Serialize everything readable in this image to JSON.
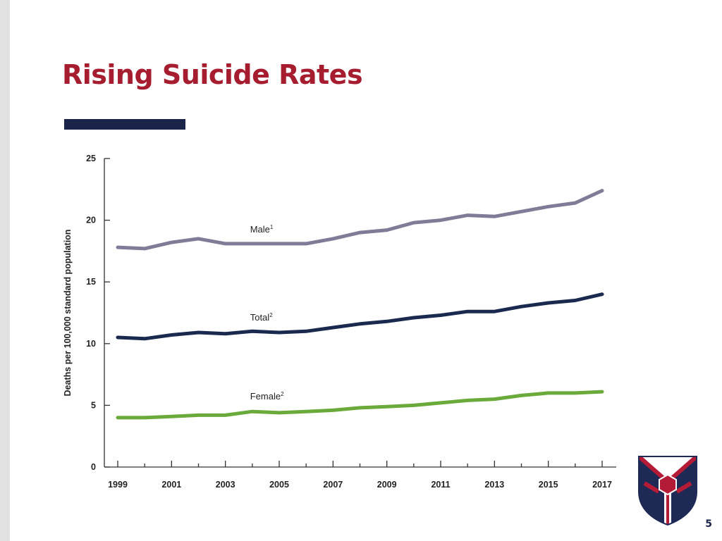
{
  "slide": {
    "title": "Rising Suicide Rates",
    "page_number": "5"
  },
  "colors": {
    "title": "#a51d2e",
    "rule": "#1a2448",
    "male": "#807b96",
    "total": "#1a2a4f",
    "female": "#6aaa3a",
    "crest_navy": "#1e2a55",
    "crest_red": "#b31b36"
  },
  "chart_data": {
    "type": "line",
    "title": "",
    "xlabel": "",
    "ylabel": "Deaths per 100,000 standard population",
    "ylim": [
      0,
      25
    ],
    "yticks": [
      "0",
      "5",
      "10",
      "15",
      "20",
      "25"
    ],
    "xticks": [
      "1999",
      "2001",
      "2003",
      "2005",
      "2007",
      "2009",
      "2011",
      "2013",
      "2015",
      "2017"
    ],
    "grid": false,
    "x": [
      1999,
      2000,
      2001,
      2002,
      2003,
      2004,
      2005,
      2006,
      2007,
      2008,
      2009,
      2010,
      2011,
      2012,
      2013,
      2014,
      2015,
      2016,
      2017
    ],
    "series": [
      {
        "name": "Male",
        "sup": "1",
        "color": "#807b96",
        "values": [
          17.8,
          17.7,
          18.2,
          18.5,
          18.1,
          18.1,
          18.1,
          18.1,
          18.5,
          19.0,
          19.2,
          19.8,
          20.0,
          20.4,
          20.3,
          20.7,
          21.1,
          21.4,
          22.4
        ]
      },
      {
        "name": "Total",
        "sup": "2",
        "color": "#1a2a4f",
        "values": [
          10.5,
          10.4,
          10.7,
          10.9,
          10.8,
          11.0,
          10.9,
          11.0,
          11.3,
          11.6,
          11.8,
          12.1,
          12.3,
          12.6,
          12.6,
          13.0,
          13.3,
          13.5,
          14.0
        ]
      },
      {
        "name": "Female",
        "sup": "2",
        "color": "#6aaa3a",
        "values": [
          4.0,
          4.0,
          4.1,
          4.2,
          4.2,
          4.5,
          4.4,
          4.5,
          4.6,
          4.8,
          4.9,
          5.0,
          5.2,
          5.4,
          5.5,
          5.8,
          6.0,
          6.0,
          6.1
        ]
      }
    ]
  }
}
